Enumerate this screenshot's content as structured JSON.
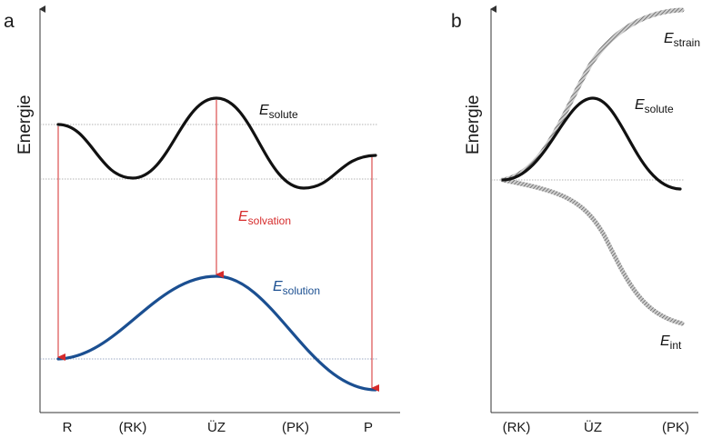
{
  "panels": [
    {
      "letter": "a",
      "ylabel": "Energie",
      "x_ticks": [
        "R",
        "(RK)",
        "ÜZ",
        "(PK)",
        "P"
      ],
      "labels": {
        "solute": {
          "main": "E",
          "sub": "solute"
        },
        "solvation": {
          "main": "E",
          "sub": "solvation"
        },
        "solution": {
          "main": "E",
          "sub": "solution"
        }
      }
    },
    {
      "letter": "b",
      "ylabel": "Energie",
      "x_ticks": [
        "(RK)",
        "ÜZ",
        "(PK)"
      ],
      "labels": {
        "strain": {
          "main": "E",
          "sub": "strain"
        },
        "solute": {
          "main": "E",
          "sub": "solute"
        },
        "int": {
          "main": "E",
          "sub": "int"
        }
      }
    }
  ],
  "colors": {
    "solute_curve": "#111111",
    "solution_curve": "#1b4f91",
    "solvation_arrows": "#d62b2b",
    "strain_int_curves": "#8a8a8a",
    "reference_lines": "#9a9a9a"
  }
}
